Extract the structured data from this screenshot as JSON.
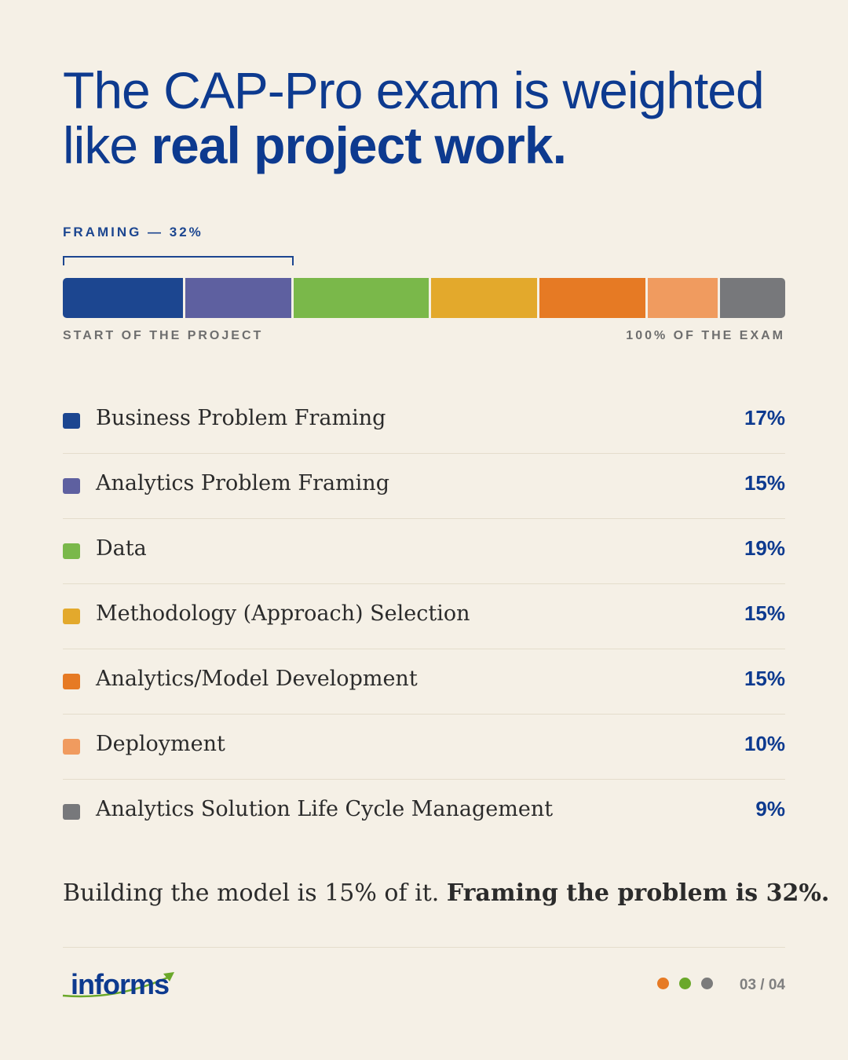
{
  "header": {
    "title_line1": "The CAP-Pro exam is weighted",
    "title_line2_regular": "like ",
    "title_line2_bold": "real project work."
  },
  "framing_label": "FRAMING — 32%",
  "axis": {
    "left_label": "START OF THE PROJECT",
    "right_label": "100% OF THE EXAM"
  },
  "chart_data": {
    "type": "bar",
    "orientation": "horizontal-stacked",
    "xlim": [
      0,
      100
    ],
    "unit": "%",
    "categories": [
      "Business Problem Framing",
      "Analytics Problem Framing",
      "Data",
      "Methodology (Approach) Selection",
      "Analytics/Model Development",
      "Deployment",
      "Analytics Solution Life Cycle Management"
    ],
    "values": [
      17,
      15,
      19,
      15,
      15,
      10,
      9
    ],
    "value_labels": [
      "17%",
      "15%",
      "19%",
      "15%",
      "15%",
      "10%",
      "9%"
    ],
    "colors": [
      "#1c4690",
      "#5e60a0",
      "#7ab84a",
      "#e3a92c",
      "#e67a24",
      "#f09b5f",
      "#77787b"
    ],
    "bracket_value": 32
  },
  "summary": {
    "regular": "Building the model is 15% of it. ",
    "bold": "Framing the problem is 32%."
  },
  "footer": {
    "logo_text": "informs",
    "page_indicator": "03 / 04",
    "dot_colors": [
      "#e67a24",
      "#6aa82a",
      "#7b7b7b"
    ]
  }
}
